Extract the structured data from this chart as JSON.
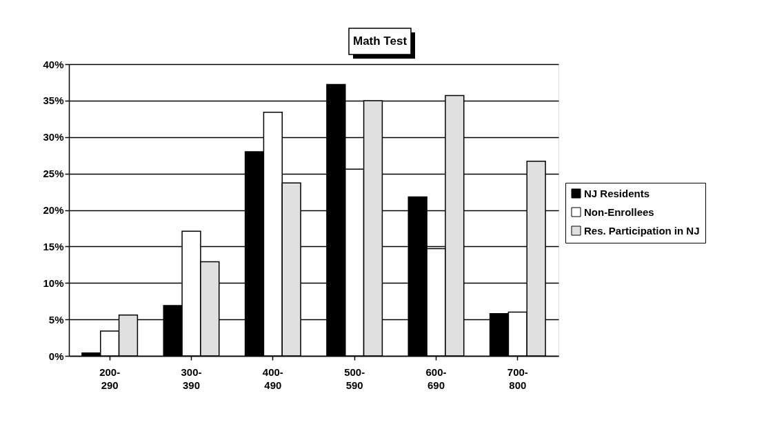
{
  "chart_data": {
    "type": "bar",
    "title": "Math Test",
    "categories": [
      "200-290",
      "300-390",
      "400-490",
      "500-590",
      "600-690",
      "700-800"
    ],
    "series": [
      {
        "name": "NJ Residents",
        "color": "#000000",
        "values": [
          0.4,
          6.9,
          28.0,
          37.2,
          21.8,
          5.8
        ]
      },
      {
        "name": "Non-Enrollees",
        "color": "#ffffff",
        "values": [
          3.4,
          17.1,
          33.4,
          25.6,
          14.7,
          6.0
        ]
      },
      {
        "name": "Res. Participation in NJ",
        "color": "#e0e0e0",
        "values": [
          5.6,
          12.9,
          23.7,
          35.0,
          35.7,
          26.7
        ]
      }
    ],
    "ylim": [
      0,
      40
    ],
    "yticks": [
      {
        "value": 0,
        "label": "0%"
      },
      {
        "value": 5,
        "label": "5%"
      },
      {
        "value": 10,
        "label": "10%"
      },
      {
        "value": 15,
        "label": "15%"
      },
      {
        "value": 20,
        "label": "20%"
      },
      {
        "value": 25,
        "label": "25%"
      },
      {
        "value": 30,
        "label": "30%"
      },
      {
        "value": 35,
        "label": "35%"
      },
      {
        "value": 40,
        "label": "40%"
      }
    ],
    "grid": "y",
    "legend": "right"
  }
}
